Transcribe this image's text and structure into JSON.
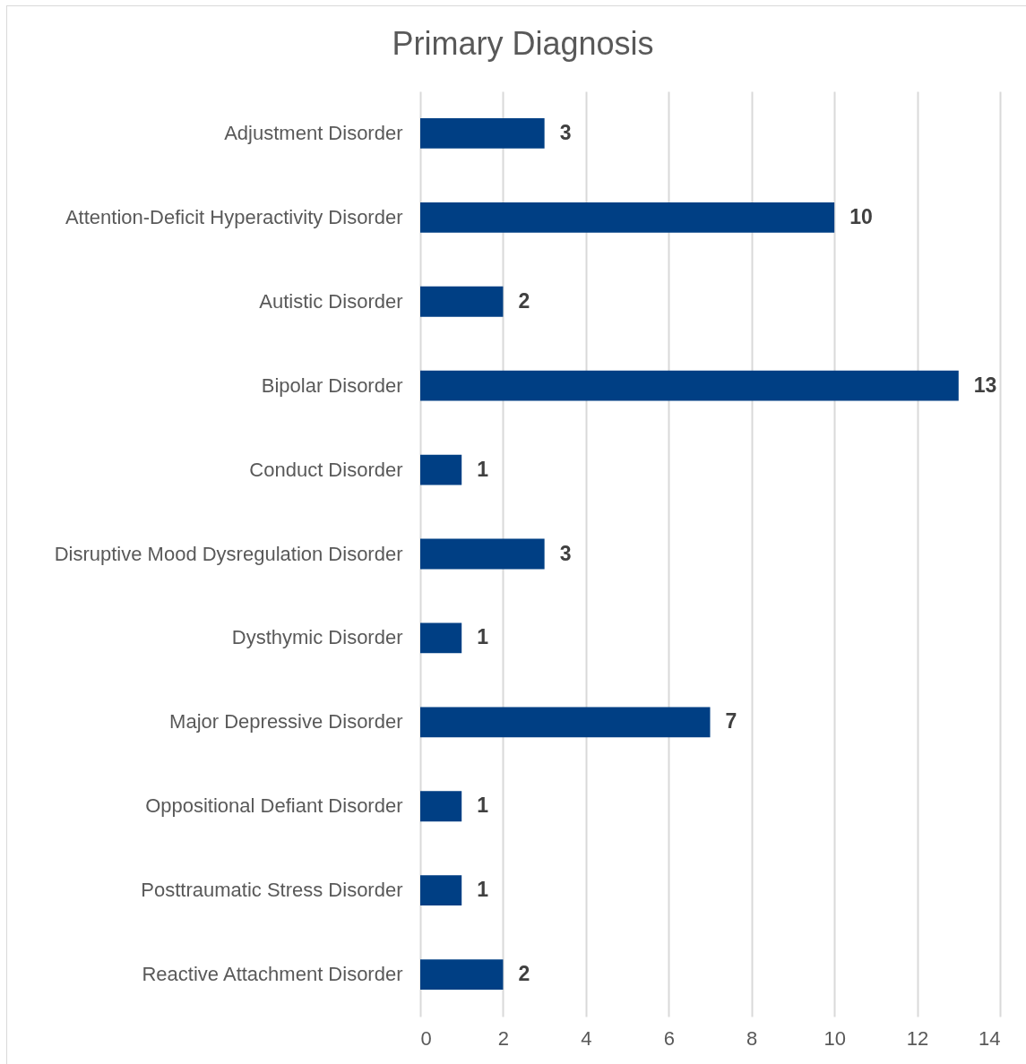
{
  "chart_data": {
    "type": "bar",
    "orientation": "horizontal",
    "title": "Primary Diagnosis",
    "categories": [
      "Adjustment Disorder",
      "Attention-Deficit Hyperactivity Disorder",
      "Autistic Disorder",
      "Bipolar Disorder",
      "Conduct Disorder",
      "Disruptive Mood Dysregulation Disorder",
      "Dysthymic Disorder",
      "Major Depressive Disorder",
      "Oppositional Defiant Disorder",
      "Posttraumatic Stress Disorder",
      "Reactive Attachment Disorder"
    ],
    "values": [
      3,
      10,
      2,
      13,
      1,
      3,
      1,
      7,
      1,
      1,
      2
    ],
    "color": "#003f84",
    "xlim": [
      0,
      14
    ],
    "xticks": [
      0,
      2,
      4,
      6,
      8,
      10,
      12,
      14
    ],
    "grid": "x",
    "data_labels": true
  }
}
